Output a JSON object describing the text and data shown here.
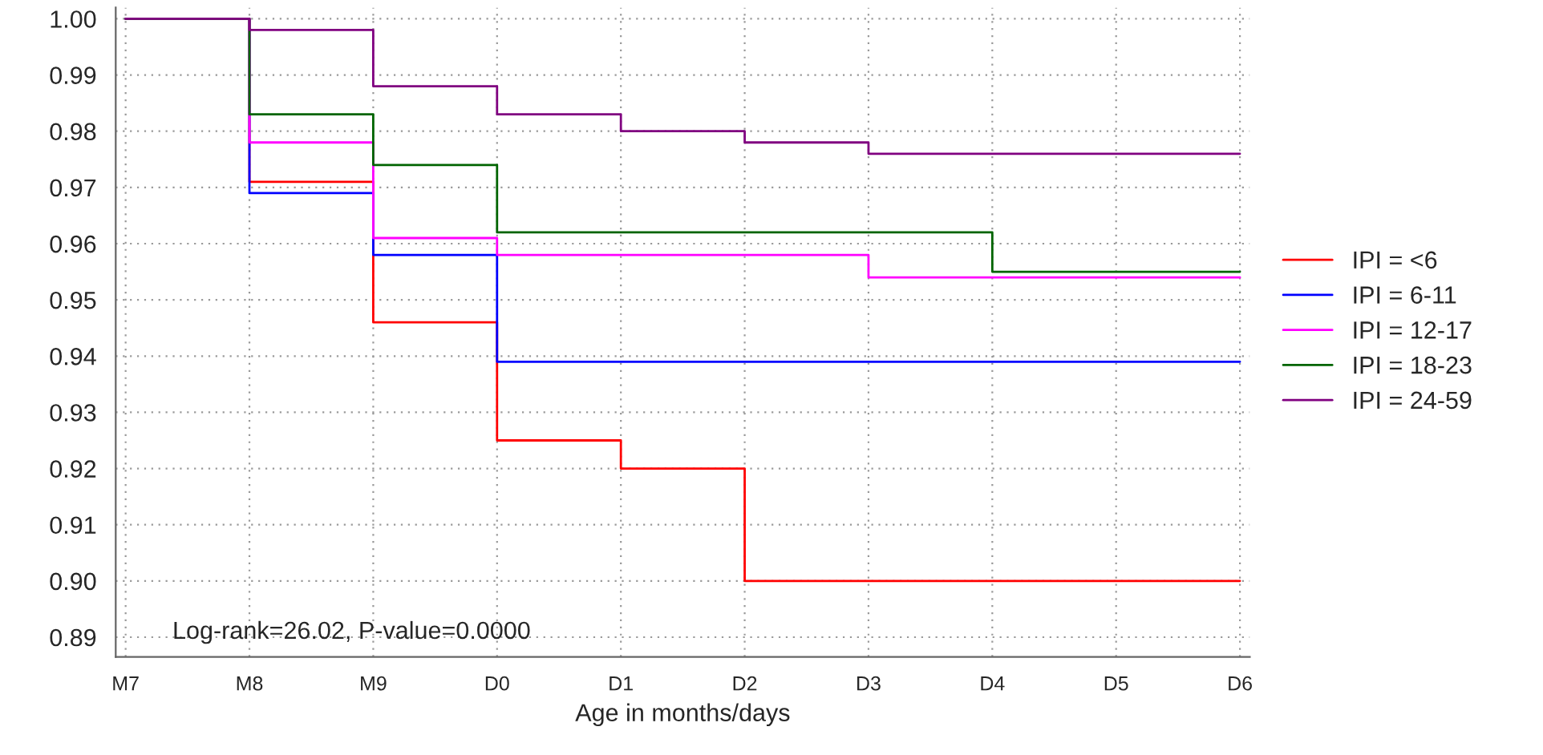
{
  "chart_data": {
    "type": "step",
    "xlabel": "Age in months/days",
    "categories": [
      "M7",
      "M8",
      "M9",
      "D0",
      "D1",
      "D2",
      "D3",
      "D4",
      "D5",
      "D6"
    ],
    "series": [
      {
        "name": "IPI = <6",
        "color": "#ff0000",
        "values": [
          1.0,
          0.971,
          0.946,
          0.925,
          0.92,
          0.9,
          0.9,
          0.9,
          0.9,
          0.9
        ]
      },
      {
        "name": "IPI = 6-11",
        "color": "#0000ff",
        "values": [
          1.0,
          0.969,
          0.958,
          0.939,
          0.939,
          0.939,
          0.939,
          0.939,
          0.939,
          0.939
        ]
      },
      {
        "name": "IPI = 12-17",
        "color": "#ff00ff",
        "values": [
          1.0,
          0.978,
          0.961,
          0.958,
          0.958,
          0.958,
          0.954,
          0.954,
          0.954,
          0.954
        ]
      },
      {
        "name": "IPI = 18-23",
        "color": "#006400",
        "values": [
          1.0,
          0.983,
          0.974,
          0.962,
          0.962,
          0.962,
          0.962,
          0.955,
          0.955,
          0.955
        ]
      },
      {
        "name": "IPI = 24-59",
        "color": "#800080",
        "values": [
          1.0,
          0.998,
          0.988,
          0.983,
          0.98,
          0.978,
          0.976,
          0.976,
          0.976,
          0.976
        ]
      }
    ],
    "ylim": [
      0.8865,
      1.002
    ],
    "yticks": [
      {
        "value": 0.89,
        "label": "0.89"
      },
      {
        "value": 0.9,
        "label": "0.90"
      },
      {
        "value": 0.91,
        "label": "0.91"
      },
      {
        "value": 0.92,
        "label": "0.92"
      },
      {
        "value": 0.93,
        "label": "0.93"
      },
      {
        "value": 0.94,
        "label": "0.94"
      },
      {
        "value": 0.95,
        "label": "0.95"
      },
      {
        "value": 0.96,
        "label": "0.96"
      },
      {
        "value": 0.97,
        "label": "0.97"
      },
      {
        "value": 0.98,
        "label": "0.98"
      },
      {
        "value": 0.99,
        "label": "0.99"
      },
      {
        "value": 1.0,
        "label": "1.00"
      }
    ],
    "annotations": [
      "Log-rank=26.02, P-value=0.0000"
    ],
    "grid": true,
    "legend": "right",
    "line_style": "solid"
  }
}
